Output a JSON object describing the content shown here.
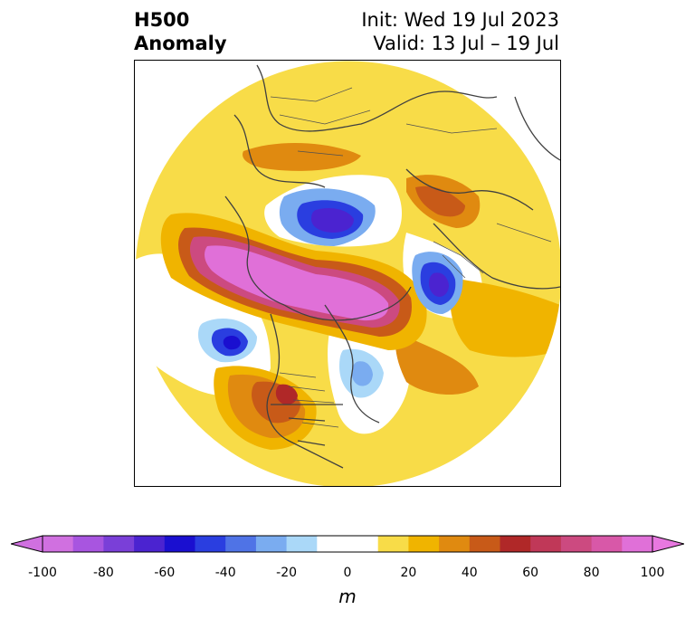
{
  "title": {
    "line1": "H500",
    "line2": "Anomaly",
    "init": "Init: Wed 19 Jul 2023",
    "valid": "Valid: 13 Jul – 19 Jul"
  },
  "colorbar": {
    "unit": "m",
    "ticks": [
      "-100",
      "-80",
      "-60",
      "-40",
      "-20",
      "0",
      "20",
      "40",
      "60",
      "80",
      "100"
    ],
    "colors": [
      "#d070e0",
      "#a855e0",
      "#7a3fd8",
      "#4b23d0",
      "#1a0fd0",
      "#2a3ee0",
      "#4f73e6",
      "#7aacf0",
      "#aad8f8",
      "#ffffff",
      "#ffffff",
      "#f8dc48",
      "#f0b400",
      "#e08a10",
      "#c85a18",
      "#b02828",
      "#c03858",
      "#cc4a80",
      "#d858a8",
      "#e070d8"
    ],
    "extend_min_color": "#d070e0",
    "extend_max_color": "#e878e0"
  }
}
